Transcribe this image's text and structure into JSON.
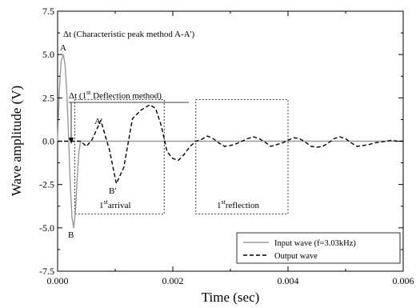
{
  "chart_data": {
    "type": "line",
    "xlabel": "Time (sec)",
    "ylabel": "Wave amplitude (V)",
    "xlim": [
      0.0,
      0.006
    ],
    "ylim": [
      -7.5,
      7.5
    ],
    "x_ticks": [
      0.0,
      0.002,
      0.004,
      0.006
    ],
    "x_tick_labels": [
      "0.000",
      "0.002",
      "0.004",
      "0.006"
    ],
    "y_ticks": [
      -7.5,
      -5.0,
      -2.5,
      0.0,
      2.5,
      5.0,
      7.5
    ],
    "y_tick_labels": [
      "-7.5",
      "-5.0",
      "-2.5",
      "0.0",
      "2.5",
      "5.0",
      "7.5"
    ],
    "grid": false,
    "legend_position": "bottom-right",
    "series": [
      {
        "name": "Input wave (f=3.03kHz)",
        "style": "solid",
        "color": "#999999",
        "x": [
          0.0,
          3e-05,
          6e-05,
          0.0001,
          0.00013,
          0.00016,
          0.00019,
          0.00022,
          0.00025,
          0.00028,
          0.00031,
          0.00034,
          0.00037,
          0.0004,
          0.006
        ],
        "y": [
          0.0,
          2.9,
          4.6,
          5.0,
          4.4,
          2.8,
          0.3,
          -2.5,
          -4.4,
          -5.0,
          -4.0,
          -2.2,
          -0.6,
          0.0,
          0.0
        ]
      },
      {
        "name": "Output wave",
        "style": "dashed",
        "color": "#000000",
        "x": [
          0.0,
          0.0004,
          0.0005,
          0.0006,
          0.00075,
          0.0009,
          0.00102,
          0.00115,
          0.0013,
          0.00145,
          0.0016,
          0.0017,
          0.0018,
          0.0019,
          0.002,
          0.0021,
          0.0022,
          0.0023,
          0.0024,
          0.0025,
          0.0026,
          0.0027,
          0.0028,
          0.0029,
          0.003,
          0.0031,
          0.0032,
          0.0033,
          0.0034,
          0.0035,
          0.0036,
          0.0037,
          0.0038,
          0.0039,
          0.004,
          0.0041,
          0.0042,
          0.0043,
          0.0044,
          0.0045,
          0.0046,
          0.0047,
          0.0048,
          0.0049,
          0.005,
          0.0051,
          0.0052,
          0.0053,
          0.0054,
          0.0055,
          0.0056,
          0.0057,
          0.0058,
          0.0059,
          0.006
        ],
        "y": [
          0.0,
          0.0,
          -0.3,
          0.1,
          1.2,
          -0.5,
          -2.45,
          -1.5,
          1.3,
          1.8,
          2.1,
          1.9,
          0.9,
          -0.6,
          -1.0,
          -1.1,
          -0.75,
          -0.3,
          0.0,
          0.1,
          0.3,
          0.15,
          -0.1,
          -0.3,
          -0.25,
          -0.15,
          0.0,
          0.15,
          0.25,
          0.15,
          -0.05,
          -0.3,
          -0.2,
          -0.1,
          0.05,
          0.2,
          0.15,
          -0.05,
          -0.3,
          -0.35,
          -0.3,
          -0.1,
          0.15,
          0.25,
          0.15,
          -0.1,
          -0.3,
          -0.25,
          -0.2,
          -0.1,
          -0.05,
          0.0,
          0.05,
          0.0,
          0.0
        ]
      }
    ],
    "annotations": {
      "peak_A": "A",
      "trough_B": "B",
      "peak_A_prime": "A'",
      "trough_B_prime": "B'",
      "dt_characteristic": "Δt (Characteristic peak method A-A')",
      "dt_deflection_prefix": "Δt (1",
      "dt_deflection_sup": "st",
      "dt_deflection_suffix": " Deflection method)",
      "first_arrival_prefix": "1",
      "first_arrival_sup": "st",
      "first_arrival_suffix": "arrival",
      "first_reflection_prefix": "1",
      "first_reflection_sup": "st",
      "first_reflection_suffix": "reflection"
    },
    "regions": [
      {
        "name": "1st arrival",
        "x": [
          0.0003,
          0.00185
        ],
        "y": [
          -4.2,
          2.4
        ]
      },
      {
        "name": "1st reflection",
        "x": [
          0.0024,
          0.004
        ],
        "y": [
          -4.2,
          2.4
        ]
      }
    ]
  }
}
